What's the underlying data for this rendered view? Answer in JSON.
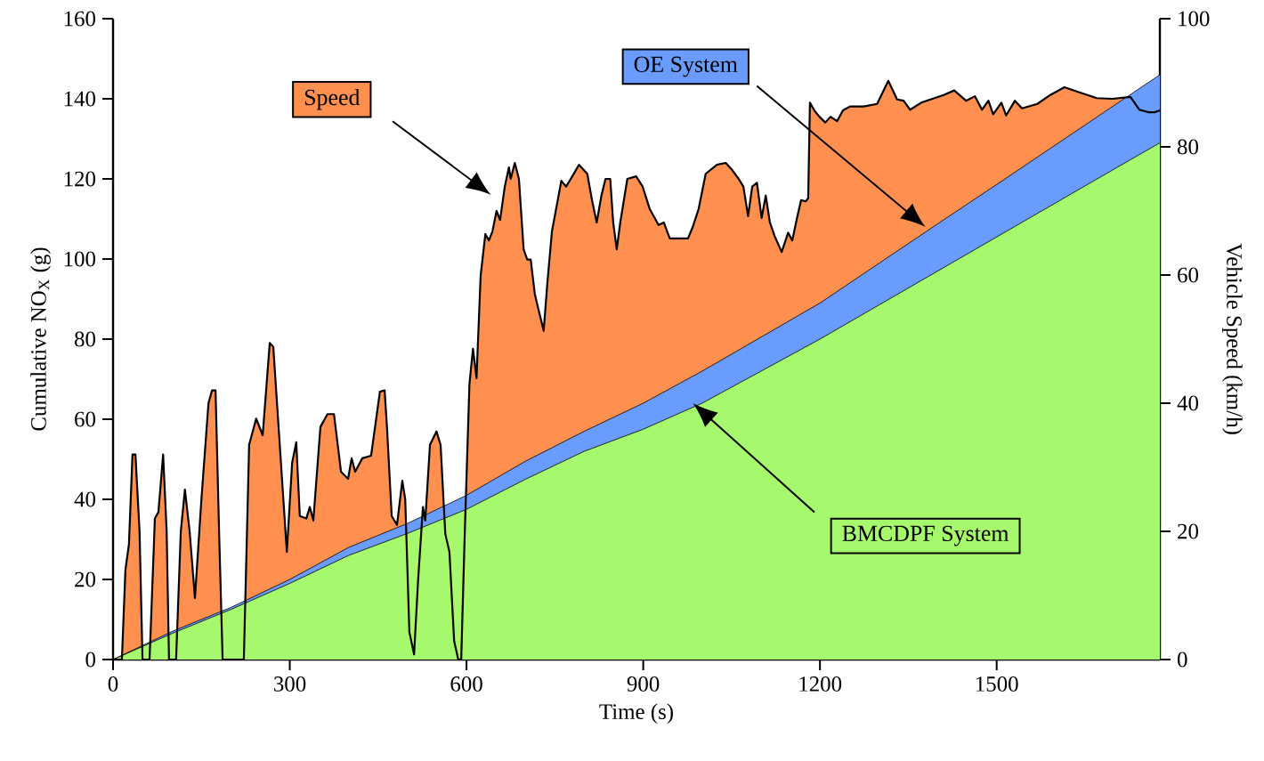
{
  "chart_data": {
    "type": "area",
    "xlabel": "Time (s)",
    "ylabel": "Cumulative NO$_{X}$ (g)",
    "y2label": "Vehicle Speed (km/h)",
    "xlim": [
      0,
      1777
    ],
    "xticks": [
      0,
      300,
      600,
      900,
      1200,
      1500
    ],
    "ylim": [
      0,
      160
    ],
    "yticks": [
      0,
      20,
      40,
      60,
      80,
      100,
      120,
      140,
      160
    ],
    "y2lim": [
      0,
      100
    ],
    "y2ticks": [
      0,
      20,
      40,
      60,
      80,
      100
    ],
    "series": [
      {
        "name": "Speed",
        "color": "#ff9050",
        "axis": "y2",
        "x": [
          0,
          15,
          21,
          27,
          33,
          38,
          45,
          50,
          62,
          71,
          77,
          85,
          91,
          95,
          107,
          115,
          122,
          130,
          139,
          150,
          162,
          168,
          174,
          180,
          186,
          222,
          231,
          243,
          254,
          266,
          272,
          283,
          295,
          304,
          311,
          317,
          328,
          334,
          340,
          352,
          364,
          375,
          387,
          399,
          405,
          411,
          423,
          438,
          453,
          461,
          465,
          473,
          482,
          491,
          496,
          503,
          511,
          518,
          526,
          530,
          538,
          549,
          556,
          564,
          571,
          579,
          586,
          591,
          597,
          605,
          611,
          617,
          624,
          632,
          638,
          644,
          651,
          657,
          665,
          672,
          675,
          682,
          689,
          697,
          703,
          709,
          716,
          723,
          731,
          737,
          745,
          761,
          769,
          777,
          791,
          805,
          813,
          821,
          829,
          836,
          844,
          849,
          855,
          861,
          873,
          888,
          899,
          911,
          926,
          935,
          945,
          957,
          976,
          984,
          994,
          1006,
          1025,
          1040,
          1050,
          1062,
          1070,
          1078,
          1085,
          1093,
          1101,
          1108,
          1115,
          1123,
          1135,
          1146,
          1153,
          1161,
          1168,
          1176,
          1180,
          1183,
          1191,
          1199,
          1209,
          1218,
          1229,
          1239,
          1251,
          1274,
          1297,
          1316,
          1331,
          1342,
          1353,
          1372,
          1410,
          1428,
          1448,
          1463,
          1475,
          1486,
          1494,
          1508,
          1516,
          1531,
          1543,
          1569,
          1591,
          1615,
          1637,
          1670,
          1697,
          1727,
          1742,
          1758,
          1768,
          1777
        ],
        "values": [
          0,
          0,
          14,
          18,
          32,
          32,
          20,
          0,
          0,
          22,
          23,
          32,
          20,
          0,
          0,
          20,
          26.5,
          20,
          9.6,
          25,
          40,
          42,
          42,
          20,
          0,
          0,
          33.5,
          37.6,
          35,
          49.4,
          48.8,
          33.5,
          16.8,
          30.7,
          33.9,
          22.4,
          22,
          23.8,
          21.7,
          36.3,
          38.3,
          38.3,
          29.3,
          28.2,
          31.4,
          29.3,
          31.4,
          31.8,
          41.8,
          42,
          36.3,
          22.4,
          21,
          27.9,
          25,
          4.3,
          0.8,
          12.6,
          23.8,
          21.7,
          33.5,
          35.6,
          33.5,
          19.6,
          16.8,
          2.9,
          0,
          0,
          19.6,
          43,
          48.5,
          43.9,
          59.9,
          66.4,
          65.4,
          66.8,
          70,
          68.6,
          73.8,
          76.8,
          75,
          77.5,
          75,
          64,
          62.4,
          62.4,
          57,
          54.3,
          51.3,
          58.5,
          66.8,
          74.7,
          73.8,
          75,
          77.2,
          75.8,
          71.7,
          68.2,
          72.4,
          75,
          75,
          68.2,
          64,
          68.2,
          75,
          75.4,
          73.8,
          70.3,
          67.8,
          68.2,
          65.7,
          65.7,
          65.7,
          67.5,
          70.3,
          75.8,
          77.2,
          77.5,
          76.5,
          75,
          73.8,
          69.2,
          73.8,
          74.4,
          68.9,
          72.4,
          68.2,
          66.1,
          63.6,
          66.6,
          65.4,
          68.9,
          71.7,
          71.5,
          72,
          86.9,
          85.6,
          84.7,
          83.8,
          84.7,
          84,
          85.7,
          86.3,
          86.3,
          86.7,
          90.3,
          87.4,
          87.2,
          85.8,
          86.9,
          88.1,
          88.8,
          87.2,
          87.9,
          85.8,
          87.2,
          85.1,
          86.9,
          84.9,
          87.2,
          86,
          86.7,
          88.1,
          89.3,
          88.6,
          87.6,
          87.5,
          87.8,
          85.8,
          85.4,
          85.4,
          85.7
        ]
      },
      {
        "name": "OE System",
        "color": "#6a9cff",
        "x": [
          0,
          100,
          200,
          300,
          400,
          500,
          600,
          700,
          800,
          900,
          1000,
          1100,
          1200,
          1300,
          1400,
          1500,
          1600,
          1700,
          1777
        ],
        "values": [
          0,
          7,
          13,
          20,
          28,
          34,
          41,
          49.5,
          57,
          64,
          72,
          80.5,
          89,
          98.9,
          108.8,
          118.6,
          128.5,
          138.4,
          146
        ]
      },
      {
        "name": "BMCDPF System",
        "color": "#a6f86c",
        "x": [
          0,
          100,
          200,
          300,
          400,
          500,
          600,
          700,
          800,
          900,
          1000,
          1100,
          1200,
          1300,
          1400,
          1500,
          1600,
          1700,
          1777
        ],
        "values": [
          0,
          6.5,
          12.5,
          19,
          26,
          31.5,
          37.5,
          45,
          52,
          57.5,
          64,
          72,
          80,
          88.5,
          97,
          105.5,
          114,
          122.5,
          129
        ]
      }
    ]
  }
}
